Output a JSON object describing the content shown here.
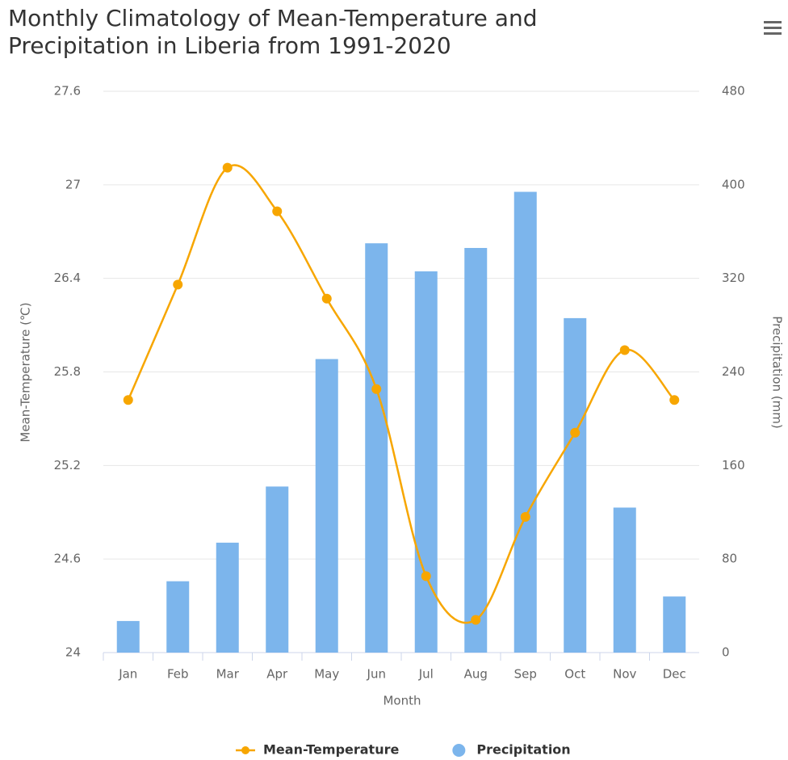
{
  "chart_data": {
    "type": "bar-line",
    "title": "Monthly Climatology of Mean-Temperature and Precipitation in Liberia from 1991-2020",
    "categories": [
      "Jan",
      "Feb",
      "Mar",
      "Apr",
      "May",
      "Jun",
      "Jul",
      "Aug",
      "Sep",
      "Oct",
      "Nov",
      "Dec"
    ],
    "x_label": "Month",
    "y_label": "Mean-Temperature (℃)",
    "y2_label": "Precipitation (mm)",
    "ylim": [
      24,
      27.6
    ],
    "yticks": [
      24,
      24.6,
      25.2,
      25.8,
      26.4,
      27,
      27.6
    ],
    "y2lim": [
      0,
      480
    ],
    "y2ticks": [
      0,
      80,
      160,
      240,
      320,
      400,
      480
    ],
    "grid": true,
    "legend": "bottom",
    "series": [
      {
        "name": "Mean-Temperature",
        "type": "spline",
        "color": "#f7a600",
        "values": [
          25.62,
          26.36,
          27.11,
          26.83,
          26.27,
          25.69,
          24.49,
          24.21,
          24.87,
          25.41,
          25.94,
          25.62
        ]
      },
      {
        "name": "Precipitation",
        "type": "bar",
        "axis": "y2",
        "color": "#7cb5ec",
        "values": [
          27,
          61,
          94,
          142,
          251,
          350,
          326,
          346,
          394,
          286,
          124,
          48
        ]
      }
    ]
  }
}
